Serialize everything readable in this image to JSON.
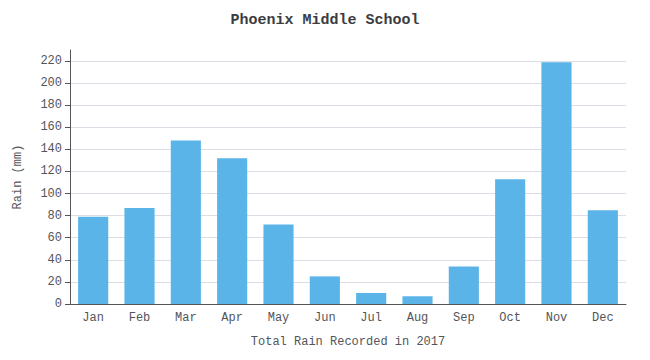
{
  "chart_data": {
    "type": "bar",
    "title": "Phoenix Middle School",
    "xlabel": "Total Rain Recorded in 2017",
    "ylabel": "Rain (mm)",
    "categories": [
      "Jan",
      "Feb",
      "Mar",
      "Apr",
      "May",
      "Jun",
      "Jul",
      "Aug",
      "Sep",
      "Oct",
      "Nov",
      "Dec"
    ],
    "values": [
      79,
      87,
      148,
      132,
      72,
      25,
      10,
      7,
      34,
      113,
      219,
      85
    ],
    "color": "#5ab4e8",
    "ylim": [
      0,
      230
    ],
    "yticks": [
      0,
      20,
      40,
      60,
      80,
      100,
      120,
      140,
      160,
      180,
      200,
      220
    ],
    "grid": true
  }
}
